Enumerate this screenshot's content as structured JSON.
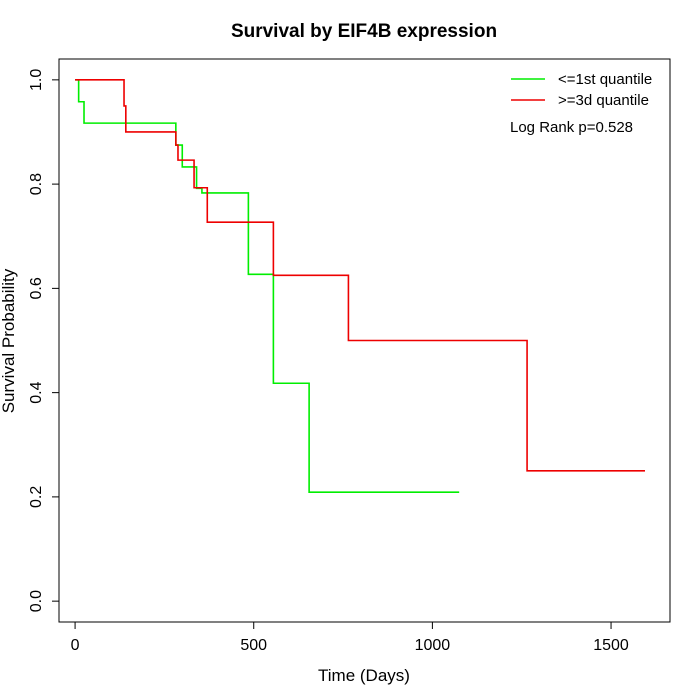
{
  "chart_data": {
    "type": "line",
    "step": true,
    "title": "Survival by EIF4B expression",
    "xlabel": "Time (Days)",
    "ylabel": "Survival Probability",
    "xlim": [
      -45,
      1665
    ],
    "ylim": [
      -0.04,
      1.04
    ],
    "xticks": [
      0,
      500,
      1000,
      1500
    ],
    "yticks": [
      0.0,
      0.2,
      0.4,
      0.6,
      0.8,
      1.0
    ],
    "xtick_labels": [
      "0",
      "500",
      "1000",
      "1500"
    ],
    "ytick_labels": [
      "0.0",
      "0.2",
      "0.4",
      "0.6",
      "0.8",
      "1.0"
    ],
    "grid": false,
    "legend_position": "top-right",
    "annotation": "Log Rank p=0.528",
    "series": [
      {
        "name": "<=1st quantile",
        "color": "#00ee00",
        "x": [
          0,
          10,
          25,
          282,
          300,
          340,
          355,
          485,
          555,
          655,
          1075
        ],
        "y": [
          1.0,
          0.958,
          0.917,
          0.875,
          0.833,
          0.792,
          0.783,
          0.627,
          0.418,
          0.209,
          0.209
        ]
      },
      {
        "name": ">=3d quantile",
        "color": "#ee0000",
        "x": [
          0,
          137,
          142,
          282,
          288,
          333,
          370,
          555,
          765,
          1265,
          1595
        ],
        "y": [
          1.0,
          0.95,
          0.9,
          0.875,
          0.846,
          0.793,
          0.727,
          0.625,
          0.5,
          0.25,
          0.25
        ]
      }
    ]
  }
}
